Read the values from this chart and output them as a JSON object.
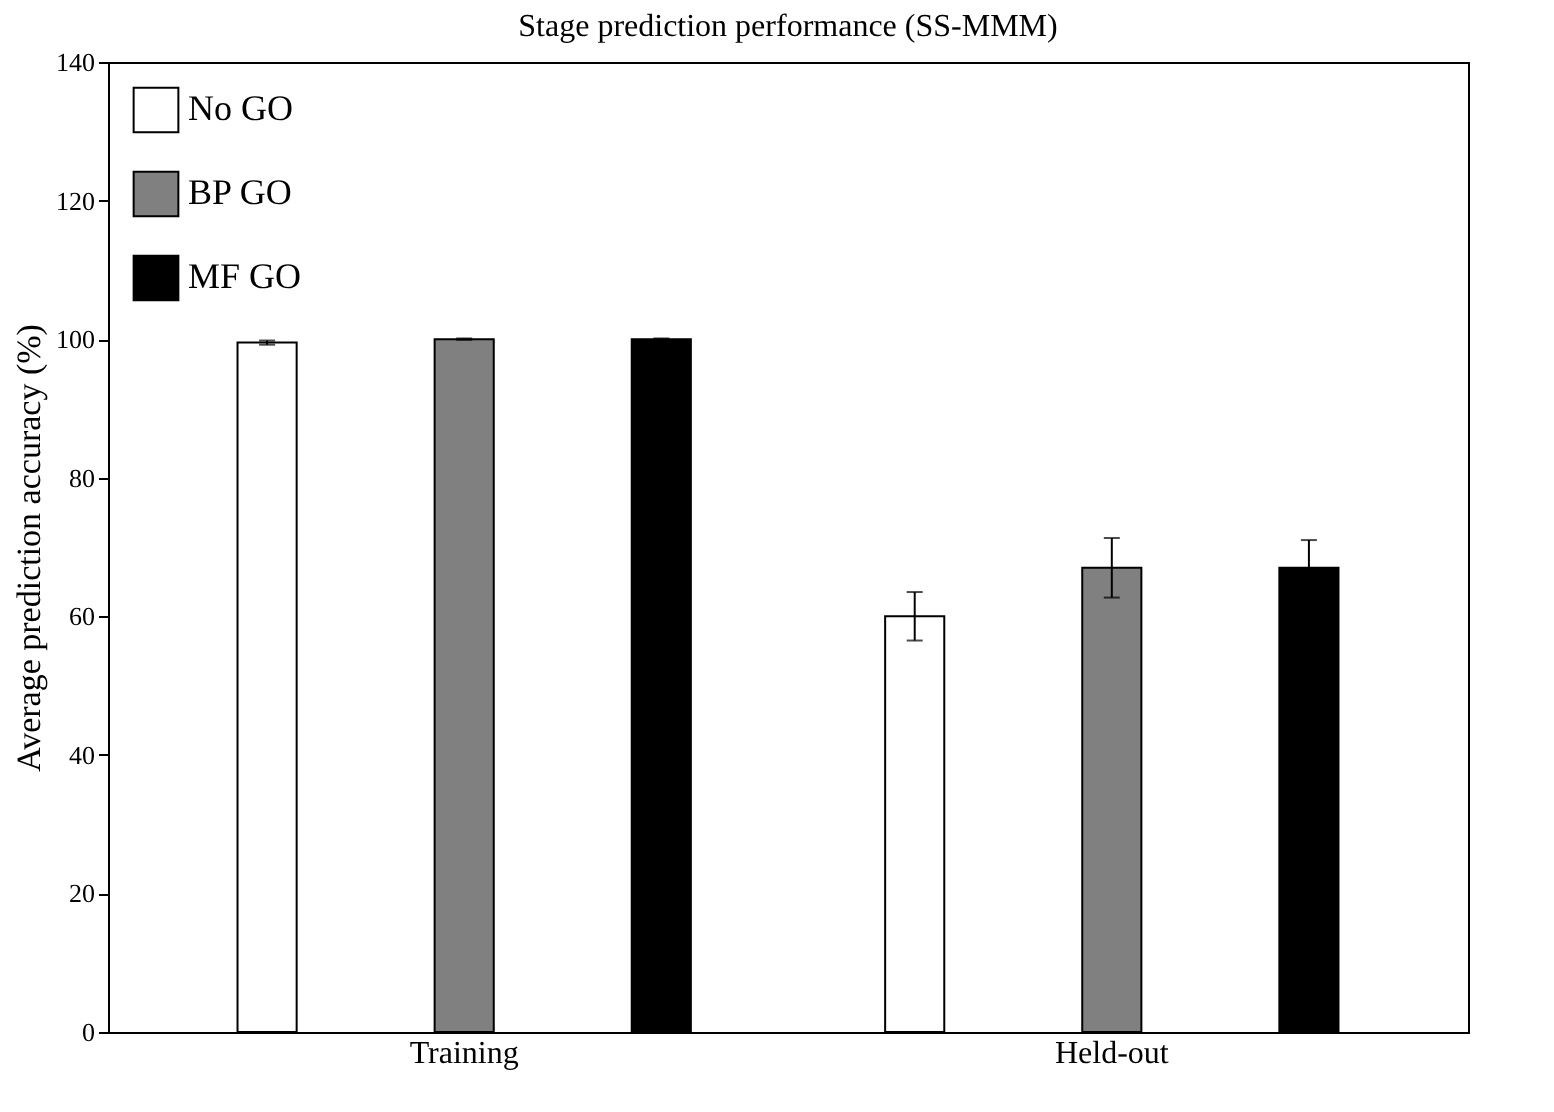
{
  "chart_data": {
    "type": "bar",
    "title": "Stage prediction performance (SS-MMM)",
    "ylabel": "Average prediction accuracy (%)",
    "categories": [
      "Training",
      "Held-out"
    ],
    "series": [
      {
        "name": "No GO",
        "color": "#ffffff",
        "values": [
          99.5,
          60
        ],
        "errors": [
          0.3,
          3.5
        ]
      },
      {
        "name": "BP GO",
        "color": "#808080",
        "values": [
          100,
          67
        ],
        "errors": [
          0.1,
          4.3
        ]
      },
      {
        "name": "MF GO",
        "color": "#000000",
        "values": [
          100,
          67
        ],
        "errors": [
          0.1,
          4
        ]
      }
    ],
    "ylim": [
      0,
      140
    ],
    "yticks": [
      0,
      20,
      40,
      60,
      80,
      100,
      120,
      140
    ],
    "grid": false,
    "legend": "top left"
  }
}
